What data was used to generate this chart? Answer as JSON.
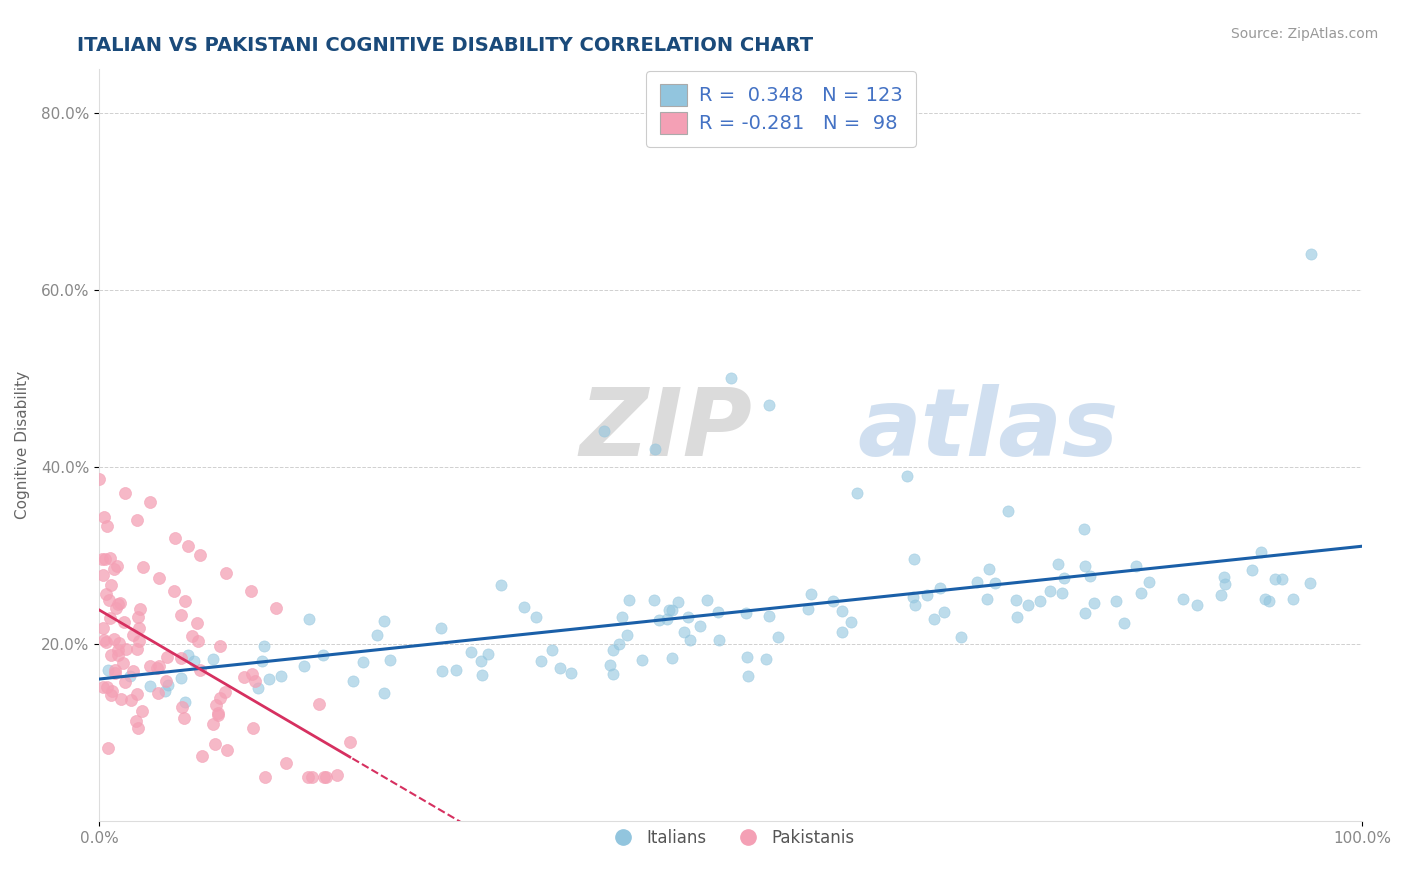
{
  "title": "ITALIAN VS PAKISTANI COGNITIVE DISABILITY CORRELATION CHART",
  "source": "Source: ZipAtlas.com",
  "ylabel": "Cognitive Disability",
  "xlim": [
    0.0,
    1.0
  ],
  "ylim": [
    0.0,
    0.85
  ],
  "y_ticks": [
    0.2,
    0.4,
    0.6,
    0.8
  ],
  "y_tick_labels": [
    "20.0%",
    "40.0%",
    "60.0%",
    "80.0%"
  ],
  "italian_color": "#92c5de",
  "pakistani_color": "#f4a0b5",
  "trendline_italian": "#1a5fa8",
  "trendline_pakistani": "#d63060",
  "R_italian": 0.348,
  "N_italian": 123,
  "R_pakistani": -0.281,
  "N_pakistani": 98,
  "watermark": "ZIPatlas",
  "grid_color": "#d0d0d0",
  "background_color": "#ffffff",
  "legend_label_italian": "Italians",
  "legend_label_pakistani": "Pakistanis",
  "title_color": "#1a4a7a",
  "axis_color": "#4472c4",
  "tick_color": "#888888"
}
